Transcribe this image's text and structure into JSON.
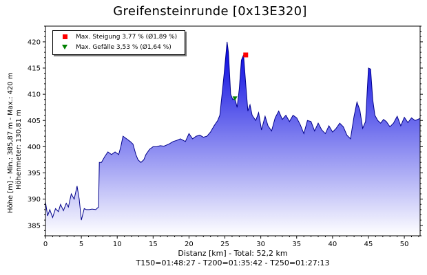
{
  "page": {
    "title": "Greifensteinrunde [0x13E320]",
    "ylabel_line1": "Höhe [m] - Min.: 385,87 m - Max.: 420 m",
    "ylabel_line2": "Höhenmeter: 130,81 m",
    "xlabel_line1": "Distanz [km] - Total: 52,2 km",
    "xlabel_line2": "T150=01:48:27 - T200=01:35:42 - T250=01:27:13"
  },
  "legend": {
    "max_climb": "Max. Steigung 3,77 % (Ø1,89 %)",
    "max_descent": "Max. Gefälle 3,53 % (Ø1,64 %)"
  },
  "colors": {
    "area_top": "#0000e0",
    "area_bottom": "#ffffff",
    "line": "#00008a",
    "climb_marker": "#ff0000",
    "descent_marker": "#008000"
  },
  "chart_data": {
    "type": "area",
    "title": "Greifensteinrunde [0x13E320]",
    "xlabel": "Distanz [km] - Total: 52,2 km",
    "ylabel": "Höhe [m] - Min.: 385,87 m - Max.: 420 m",
    "xlim": [
      0,
      52.2
    ],
    "ylim": [
      383,
      423
    ],
    "xticks": [
      0,
      5,
      10,
      15,
      20,
      25,
      30,
      35,
      40,
      45,
      50
    ],
    "yticks": [
      385,
      390,
      395,
      400,
      405,
      410,
      415,
      420
    ],
    "grid": false,
    "legend_position": "top-left",
    "series": [
      {
        "x": [
          0,
          0.3,
          0.6,
          1.0,
          1.4,
          1.8,
          2.1,
          2.5,
          2.9,
          3.2,
          3.6,
          4.0,
          4.4,
          4.7,
          5.0,
          5.4,
          5.7,
          6.1,
          6.5,
          7.0,
          7.4,
          7.5,
          7.8,
          8.3,
          8.7,
          9.2,
          9.7,
          10.2,
          10.5,
          10.8,
          11.3,
          11.8,
          12.2,
          12.6,
          12.9,
          13.3,
          13.7,
          14.0,
          14.5,
          15.0,
          15.5,
          16.0,
          16.5,
          17.2,
          17.8,
          18.3,
          18.8,
          19.5,
          20.0,
          20.5,
          21.0,
          21.5,
          22.0,
          22.5,
          23.0,
          23.5,
          24.0,
          24.3,
          24.6,
          24.9,
          25.3,
          25.5,
          25.8,
          26.1,
          26.4,
          26.7,
          27.0,
          27.3,
          27.6,
          27.9,
          28.2,
          28.5,
          28.8,
          29.3,
          29.7,
          30.1,
          30.6,
          31.0,
          31.5,
          32.0,
          32.5,
          33.0,
          33.5,
          34.0,
          34.5,
          35.0,
          35.5,
          36.0,
          36.5,
          37.0,
          37.5,
          38.0,
          38.5,
          39.0,
          39.5,
          40.0,
          40.5,
          41.0,
          41.5,
          42.0,
          42.5,
          43.0,
          43.4,
          43.8,
          44.2,
          44.6,
          45.0,
          45.3,
          45.6,
          45.9,
          46.3,
          46.7,
          47.1,
          47.5,
          48.0,
          48.5,
          49.0,
          49.5,
          50.0,
          50.5,
          51.0,
          51.5,
          52.2
        ],
        "values": [
          389.5,
          386.8,
          388.0,
          386.5,
          388.2,
          387.6,
          389.0,
          387.8,
          389.2,
          388.5,
          391.0,
          390.0,
          392.5,
          390.0,
          386.0,
          388.2,
          388.0,
          388.0,
          388.1,
          388.0,
          388.5,
          397.0,
          397.0,
          398.2,
          399.0,
          398.5,
          399.0,
          398.5,
          400.0,
          402.0,
          401.5,
          401.0,
          400.5,
          398.5,
          397.5,
          397.0,
          397.5,
          398.5,
          399.5,
          400.0,
          400.0,
          400.2,
          400.1,
          400.5,
          401.0,
          401.2,
          401.5,
          401.0,
          402.5,
          401.5,
          402.0,
          402.2,
          401.8,
          402.0,
          402.8,
          404.0,
          405.0,
          406.0,
          410.0,
          414.0,
          420.0,
          418.0,
          410.0,
          409.0,
          409.2,
          407.5,
          411.0,
          416.5,
          417.5,
          412.0,
          406.8,
          408.0,
          406.0,
          405.0,
          406.5,
          403.2,
          405.8,
          404.0,
          403.0,
          405.5,
          406.8,
          405.2,
          406.0,
          404.8,
          406.0,
          405.5,
          404.2,
          402.5,
          405.0,
          404.8,
          403.0,
          404.5,
          403.2,
          402.5,
          404.0,
          402.8,
          403.5,
          404.5,
          403.8,
          402.2,
          401.5,
          405.8,
          408.5,
          407.0,
          403.5,
          404.8,
          415.0,
          414.8,
          409.0,
          406.0,
          405.0,
          404.5,
          405.2,
          404.8,
          403.8,
          404.5,
          405.8,
          404.0,
          405.6,
          404.6,
          405.5,
          405.0,
          405.4
        ]
      }
    ],
    "markers": [
      {
        "label": "Max. Steigung 3,77 % (Ø1,89 %)",
        "x": 27.9,
        "y": 417.5
      },
      {
        "label": "Max. Gefälle 3,53 % (Ø1,64 %)",
        "x": 26.4,
        "y": 409.2
      }
    ]
  }
}
